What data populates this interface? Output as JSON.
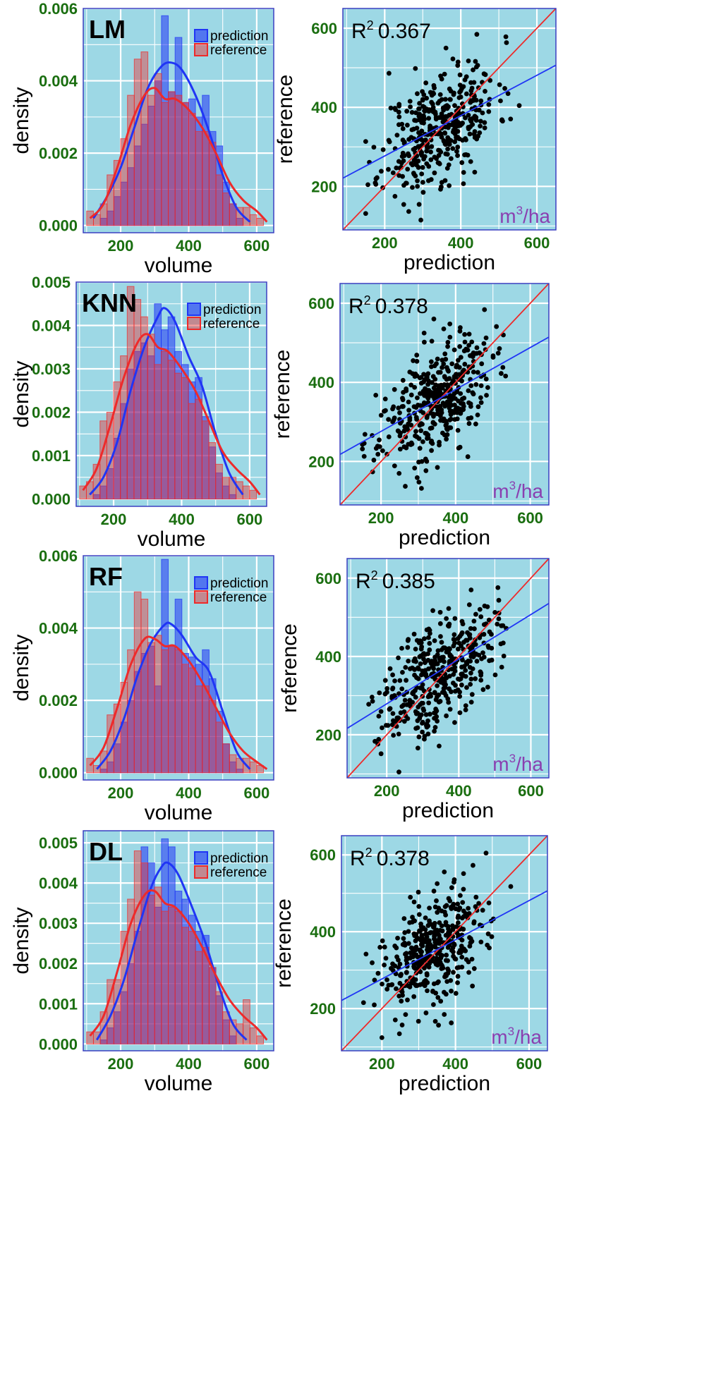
{
  "colors": {
    "panel_bg": "#9dd8e5",
    "grid": "#ffffff",
    "prediction": "#2035f5",
    "reference": "#ee2a2a",
    "tick_text": "#1a6e10",
    "unit_text": "#8a3fb0",
    "points": "#000000"
  },
  "chart_data": [
    {
      "type": "bar",
      "title": "LM",
      "xlabel": "volume",
      "ylabel": "density",
      "xlim": [
        90,
        650
      ],
      "ylim": [
        -0.0002,
        0.006
      ],
      "xticks": [
        200,
        400,
        600
      ],
      "yticks": [
        0.0,
        0.002,
        0.004,
        0.006
      ],
      "ytick_labels": [
        "0.000",
        "0.002",
        "0.004",
        "0.006"
      ],
      "legend": [
        "prediction",
        "reference"
      ],
      "legend_position": "top-right",
      "bin_width": 20,
      "bin_start": 100,
      "series": [
        {
          "name": "prediction",
          "values": [
            0,
            0,
            0.0002,
            0.0004,
            0.0008,
            0.0012,
            0.0016,
            0.0022,
            0.0028,
            0.0033,
            0.004,
            0.0058,
            0.0037,
            0.0052,
            0.0034,
            0.0035,
            0.003,
            0.0036,
            0.0026,
            0.0022,
            0.0012,
            0.0006,
            0.0002,
            0,
            0,
            0,
            0
          ]
        },
        {
          "name": "reference",
          "values": [
            0.0004,
            0.0003,
            0.0006,
            0.0014,
            0.0018,
            0.0024,
            0.0036,
            0.0046,
            0.0048,
            0.0036,
            0.0042,
            0.0034,
            0.0037,
            0.0036,
            0.0034,
            0.0031,
            0.0026,
            0.0026,
            0.0023,
            0.0014,
            0.0009,
            0.0006,
            0.0005,
            0.0005,
            0.0003,
            0.0002,
            0
          ]
        },
        {
          "name": "prediction density",
          "x": [
            120,
            160,
            200,
            240,
            280,
            320,
            350,
            380,
            420,
            460,
            500,
            540,
            580
          ],
          "values": [
            0.0002,
            0.0008,
            0.0016,
            0.0027,
            0.0038,
            0.0044,
            0.0045,
            0.0043,
            0.0036,
            0.0026,
            0.0014,
            0.0005,
            0.0001
          ]
        },
        {
          "name": "reference density",
          "x": [
            110,
            150,
            190,
            230,
            270,
            300,
            330,
            360,
            400,
            440,
            480,
            520,
            560,
            600,
            630
          ],
          "values": [
            0.0002,
            0.0006,
            0.0016,
            0.0028,
            0.0036,
            0.0038,
            0.0035,
            0.0035,
            0.0032,
            0.0027,
            0.002,
            0.0012,
            0.0007,
            0.0004,
            0.0001
          ]
        }
      ]
    },
    {
      "type": "scatter",
      "xlabel": "prediction",
      "ylabel": "reference",
      "xlim": [
        90,
        650
      ],
      "ylim": [
        90,
        650
      ],
      "xticks": [
        200,
        400,
        600
      ],
      "yticks": [
        200,
        400,
        600
      ],
      "annotation": "R",
      "annotation_sup": "2",
      "annotation_value": "0.367",
      "unit": "m",
      "unit_sup": "3",
      "unit_tail": "/ha",
      "fit_line": {
        "slope": 0.51,
        "intercept": 175
      },
      "identity_line": true,
      "n_points": 400,
      "seed": 11,
      "x_mean": 345,
      "x_sd": 75,
      "y_sd_resid": 70
    },
    {
      "type": "bar",
      "title": "KNN",
      "xlabel": "volume",
      "ylabel": "density",
      "xlim": [
        90,
        650
      ],
      "ylim": [
        -0.00017,
        0.005
      ],
      "xticks": [
        200,
        400,
        600
      ],
      "yticks": [
        0.0,
        0.001,
        0.002,
        0.003,
        0.004,
        0.005
      ],
      "ytick_labels": [
        "0.000",
        "0.001",
        "0.002",
        "0.003",
        "0.004",
        "0.005"
      ],
      "legend": [
        "prediction",
        "reference"
      ],
      "legend_position": "top-right",
      "bin_width": 20,
      "bin_start": 100,
      "series": [
        {
          "name": "prediction",
          "values": [
            0,
            0,
            0.0001,
            0.0003,
            0.0007,
            0.0014,
            0.0022,
            0.003,
            0.0034,
            0.0036,
            0.0033,
            0.0045,
            0.0039,
            0.0042,
            0.0034,
            0.0031,
            0.0027,
            0.0028,
            0.0019,
            0.0012,
            0.0006,
            0.0003,
            0.0001,
            0,
            0,
            0,
            0
          ]
        },
        {
          "name": "reference",
          "values": [
            0.0003,
            0.0004,
            0.0008,
            0.0018,
            0.002,
            0.0027,
            0.0033,
            0.0049,
            0.0046,
            0.0042,
            0.0038,
            0.0031,
            0.0034,
            0.0032,
            0.0029,
            0.0028,
            0.0022,
            0.0023,
            0.0018,
            0.0013,
            0.0008,
            0.0005,
            0.0005,
            0.0004,
            0.0003,
            0.0002,
            0
          ]
        },
        {
          "name": "prediction density",
          "x": [
            130,
            170,
            210,
            250,
            290,
            330,
            350,
            380,
            420,
            460,
            500,
            540,
            580
          ],
          "values": [
            0.0001,
            0.0005,
            0.0013,
            0.0025,
            0.0035,
            0.0042,
            0.0044,
            0.0041,
            0.0033,
            0.0026,
            0.0015,
            0.0006,
            0.0001
          ]
        },
        {
          "name": "reference density",
          "x": [
            110,
            150,
            190,
            230,
            270,
            300,
            330,
            360,
            400,
            440,
            480,
            520,
            560,
            600,
            630
          ],
          "values": [
            0.0002,
            0.0007,
            0.0017,
            0.0028,
            0.0036,
            0.0038,
            0.0035,
            0.0034,
            0.003,
            0.0025,
            0.0018,
            0.0011,
            0.0007,
            0.0004,
            0.0001
          ]
        }
      ]
    },
    {
      "type": "scatter",
      "xlabel": "prediction",
      "ylabel": "reference",
      "xlim": [
        90,
        650
      ],
      "ylim": [
        90,
        650
      ],
      "xticks": [
        200,
        400,
        600
      ],
      "yticks": [
        200,
        400,
        600
      ],
      "annotation": "R",
      "annotation_sup": "2",
      "annotation_value": "0.378",
      "unit": "m",
      "unit_sup": "3",
      "unit_tail": "/ha",
      "fit_line": {
        "slope": 0.53,
        "intercept": 170
      },
      "identity_line": true,
      "n_points": 400,
      "seed": 23,
      "x_mean": 345,
      "x_sd": 75,
      "y_sd_resid": 68
    },
    {
      "type": "bar",
      "title": "RF",
      "xlabel": "volume",
      "ylabel": "density",
      "xlim": [
        90,
        650
      ],
      "ylim": [
        -0.0002,
        0.006
      ],
      "xticks": [
        200,
        400,
        600
      ],
      "yticks": [
        0.0,
        0.002,
        0.004,
        0.006
      ],
      "ytick_labels": [
        "0.000",
        "0.002",
        "0.004",
        "0.006"
      ],
      "legend": [
        "prediction",
        "reference"
      ],
      "legend_position": "top-right",
      "bin_width": 20,
      "bin_start": 100,
      "series": [
        {
          "name": "prediction",
          "values": [
            0,
            0,
            0.0001,
            0.0003,
            0.0008,
            0.0014,
            0.002,
            0.0028,
            0.0033,
            0.0035,
            0.0024,
            0.0059,
            0.0035,
            0.0048,
            0.0033,
            0.0032,
            0.003,
            0.0034,
            0.0026,
            0.0017,
            0.0008,
            0.0003,
            0.0001,
            0,
            0,
            0,
            0
          ]
        },
        {
          "name": "reference",
          "values": [
            0.0004,
            0.0002,
            0.0006,
            0.0016,
            0.0019,
            0.0025,
            0.0034,
            0.005,
            0.0048,
            0.0036,
            0.0038,
            0.0034,
            0.0035,
            0.0034,
            0.003,
            0.0029,
            0.0024,
            0.0024,
            0.002,
            0.0014,
            0.0008,
            0.0005,
            0.0004,
            0.0004,
            0.0003,
            0.0002,
            0
          ]
        },
        {
          "name": "prediction density",
          "x": [
            130,
            170,
            210,
            250,
            290,
            330,
            350,
            380,
            420,
            460,
            500,
            540,
            580
          ],
          "values": [
            0.0001,
            0.0006,
            0.0015,
            0.0027,
            0.0036,
            0.0041,
            0.0041,
            0.0038,
            0.0032,
            0.0028,
            0.0017,
            0.0006,
            0.0001
          ]
        },
        {
          "name": "reference density",
          "x": [
            110,
            150,
            190,
            230,
            270,
            300,
            330,
            360,
            400,
            440,
            480,
            520,
            560,
            600,
            630
          ],
          "values": [
            0.0002,
            0.0007,
            0.0018,
            0.003,
            0.0037,
            0.0037,
            0.0035,
            0.0035,
            0.0031,
            0.0025,
            0.0018,
            0.0011,
            0.0006,
            0.0003,
            0.0001
          ]
        }
      ]
    },
    {
      "type": "scatter",
      "xlabel": "prediction",
      "ylabel": "reference",
      "xlim": [
        90,
        650
      ],
      "ylim": [
        90,
        650
      ],
      "xticks": [
        200,
        400,
        600
      ],
      "yticks": [
        200,
        400,
        600
      ],
      "annotation": "R",
      "annotation_sup": "2",
      "annotation_value": "0.385",
      "unit": "m",
      "unit_sup": "3",
      "unit_tail": "/ha",
      "fit_line": {
        "slope": 0.57,
        "intercept": 165
      },
      "identity_line": true,
      "n_points": 400,
      "seed": 37,
      "x_mean": 345,
      "x_sd": 78,
      "y_sd_resid": 68
    },
    {
      "type": "bar",
      "title": "DL",
      "xlabel": "volume",
      "ylabel": "density",
      "xlim": [
        90,
        650
      ],
      "ylim": [
        -0.00017,
        0.0053
      ],
      "xticks": [
        200,
        400,
        600
      ],
      "yticks": [
        0.0,
        0.001,
        0.002,
        0.003,
        0.004,
        0.005
      ],
      "ytick_labels": [
        "0.000",
        "0.001",
        "0.002",
        "0.003",
        "0.004",
        "0.005"
      ],
      "legend": [
        "prediction",
        "reference"
      ],
      "legend_position": "top-right",
      "bin_width": 20,
      "bin_start": 100,
      "series": [
        {
          "name": "prediction",
          "values": [
            0,
            0,
            0.0001,
            0.0004,
            0.0008,
            0.0013,
            0.002,
            0.0028,
            0.0049,
            0.0045,
            0.0034,
            0.0051,
            0.0049,
            0.0038,
            0.0036,
            0.0032,
            0.0028,
            0.0027,
            0.0019,
            0.0012,
            0.0006,
            0.0002,
            0,
            0,
            0,
            0,
            0
          ]
        },
        {
          "name": "reference",
          "values": [
            0.0003,
            0.0003,
            0.0008,
            0.0016,
            0.0016,
            0.0028,
            0.0036,
            0.0048,
            0.0045,
            0.0037,
            0.0039,
            0.0033,
            0.0034,
            0.0033,
            0.0029,
            0.0028,
            0.0023,
            0.0024,
            0.0019,
            0.0013,
            0.0008,
            0.0006,
            0.0005,
            0.0011,
            0.0004,
            0.0002,
            0
          ]
        },
        {
          "name": "prediction density",
          "x": [
            130,
            170,
            210,
            250,
            290,
            320,
            340,
            370,
            410,
            450,
            490,
            530,
            570
          ],
          "values": [
            0.0001,
            0.0007,
            0.0016,
            0.0028,
            0.0039,
            0.0044,
            0.0045,
            0.0042,
            0.0034,
            0.0025,
            0.0014,
            0.0005,
            0.0001
          ]
        },
        {
          "name": "reference density",
          "x": [
            110,
            150,
            190,
            230,
            270,
            300,
            330,
            360,
            400,
            440,
            480,
            520,
            560,
            600,
            630
          ],
          "values": [
            0.0002,
            0.0007,
            0.0018,
            0.003,
            0.0037,
            0.0038,
            0.0035,
            0.0034,
            0.003,
            0.0024,
            0.0017,
            0.0011,
            0.0007,
            0.0004,
            0.0001
          ]
        }
      ]
    },
    {
      "type": "scatter",
      "xlabel": "prediction",
      "ylabel": "reference",
      "xlim": [
        90,
        650
      ],
      "ylim": [
        90,
        650
      ],
      "xticks": [
        200,
        400,
        600
      ],
      "yticks": [
        200,
        400,
        600
      ],
      "annotation": "R",
      "annotation_sup": "2",
      "annotation_value": "0.378",
      "unit": "m",
      "unit_sup": "3",
      "unit_tail": "/ha",
      "fit_line": {
        "slope": 0.51,
        "intercept": 175
      },
      "identity_line": true,
      "n_points": 400,
      "seed": 53,
      "x_mean": 345,
      "x_sd": 75,
      "y_sd_resid": 70
    }
  ]
}
